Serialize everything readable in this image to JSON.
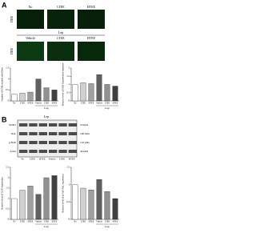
{
  "panel_a": {
    "label": "A",
    "row_label": "DHE",
    "columns": [
      "No",
      "LTEE",
      "HTEE"
    ],
    "group_label": "Lep",
    "group_columns": [
      "Vehicle",
      "LTEE",
      "HTEE"
    ],
    "charts": [
      {
        "type": "bar",
        "y_label": "Number of DHE-stained cells/field",
        "categories": [
          "No",
          "LTEE",
          "HTEE",
          "Vehicle",
          "LTEE",
          "HTEE"
        ],
        "group_label": "Lep",
        "values": [
          0.3,
          0.35,
          0.4,
          1,
          0.6,
          0.5
        ],
        "colors": [
          "#ffffff",
          "#d0d0d0",
          "#a0a0a0",
          "#606060",
          "#909090",
          "#404040"
        ],
        "ylim": [
          0,
          1.5
        ],
        "yticks": [
          0,
          0.5,
          1,
          1.5
        ]
      },
      {
        "type": "bar",
        "y_label": "Relative level of DHE fluorescence intensity",
        "categories": [
          "No",
          "LTEE",
          "HTEE",
          "Vehicle",
          "LTEE",
          "HTEE"
        ],
        "group_label": "Lep",
        "values": [
          1,
          1.1,
          1.05,
          1.6,
          1,
          0.9
        ],
        "colors": [
          "#ffffff",
          "#d0d0d0",
          "#a0a0a0",
          "#606060",
          "#909090",
          "#404040"
        ],
        "ylim": [
          0,
          2
        ],
        "yticks": [
          0,
          0.5,
          1,
          1.5,
          2
        ]
      }
    ]
  },
  "panel_b": {
    "label": "B",
    "group_label": "Lep",
    "lanes": [
      "No",
      "LTEE",
      "HTEE",
      "Vehicle",
      "LTEE",
      "HTEE"
    ],
    "blot": [
      {
        "name": "SOD1",
        "size": "23 kDa"
      },
      {
        "name": "NaL",
        "size": "100 kDa"
      },
      {
        "name": "p-NaE",
        "size": "110 kDa"
      },
      {
        "name": "Actin",
        "size": "42 kDa"
      }
    ],
    "charts": [
      {
        "type": "bar",
        "y_label": "Relative level of SOD expression",
        "categories": [
          "No",
          "LTEE",
          "HTEE",
          "Vehicle",
          "LTEE",
          "HTEE"
        ],
        "group_label": "Lep",
        "values": [
          1,
          1.4,
          1.6,
          1.2,
          2,
          2.1
        ],
        "colors": [
          "#ffffff",
          "#d0d0d0",
          "#a0a0a0",
          "#606060",
          "#909090",
          "#404040"
        ],
        "ylim": [
          0,
          2.5
        ],
        "yticks": [
          0,
          0.5,
          1,
          1.5,
          2,
          2.5
        ]
      },
      {
        "type": "bar",
        "y_label": "Relative level of p-NaE/NaL expression",
        "categories": [
          "No",
          "LTEE",
          "HTEE",
          "Vehicle",
          "LTEE",
          "HTEE"
        ],
        "group_label": "Lep",
        "values": [
          1,
          0.9,
          0.85,
          1.15,
          0.8,
          0.6
        ],
        "colors": [
          "#ffffff",
          "#d0d0d0",
          "#a0a0a0",
          "#606060",
          "#909090",
          "#404040"
        ],
        "ylim": [
          0,
          1.5
        ],
        "yticks": [
          0,
          0.5,
          1,
          1.5
        ]
      }
    ]
  }
}
